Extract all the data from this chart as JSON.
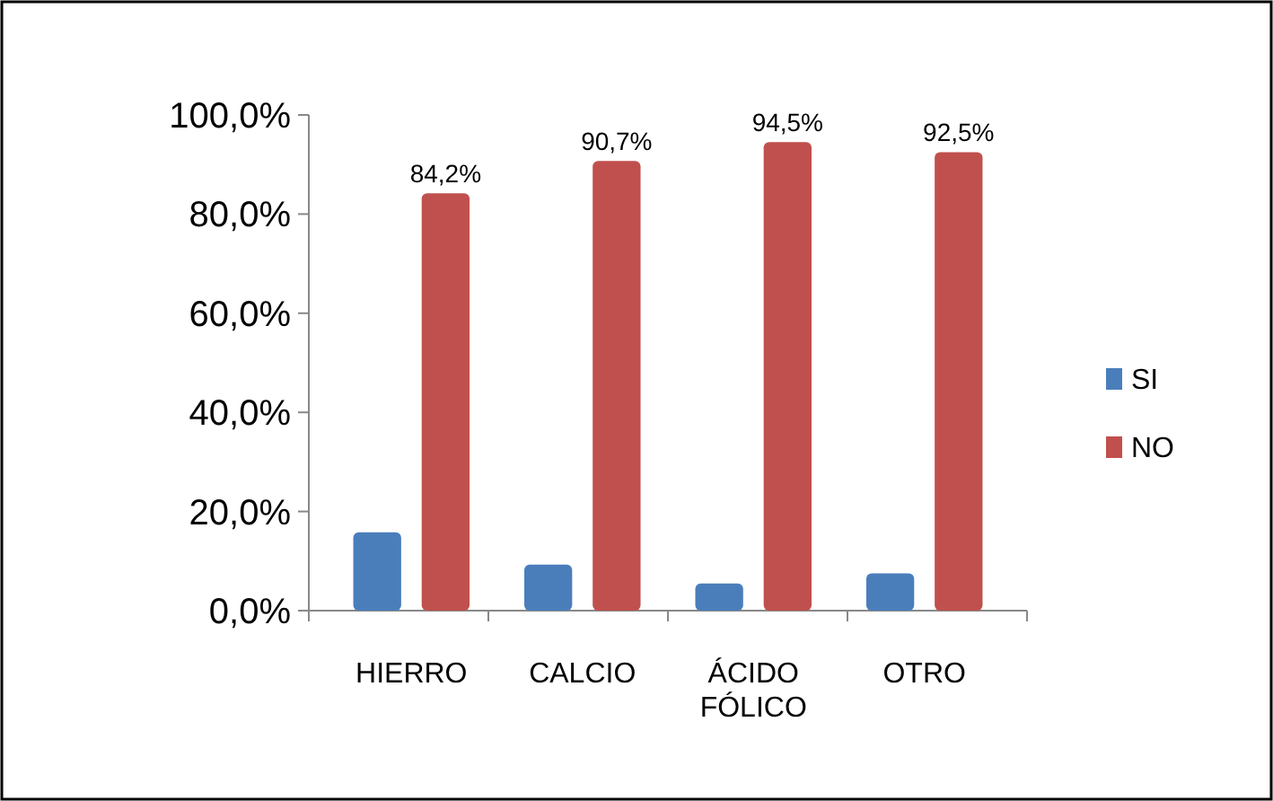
{
  "chart_data": {
    "type": "bar",
    "categories": [
      "HIERRO",
      "CALCIO",
      "ÁCIDO FÓLICO",
      "OTRO"
    ],
    "series": [
      {
        "name": "SI",
        "color": "#4a7ebb",
        "values": [
          15.8,
          9.3,
          5.5,
          7.5
        ]
      },
      {
        "name": "NO",
        "color": "#c0504d",
        "values": [
          84.2,
          90.7,
          94.5,
          92.5
        ],
        "value_labels": [
          "84,2%",
          "90,7%",
          "94,5%",
          "92,5%"
        ]
      }
    ],
    "ylim": [
      0,
      100
    ],
    "yticks": [
      {
        "value": 0,
        "label": "0,0%"
      },
      {
        "value": 20,
        "label": "20,0%"
      },
      {
        "value": 40,
        "label": "40,0%"
      },
      {
        "value": 60,
        "label": "60,0%"
      },
      {
        "value": 80,
        "label": "80,0%"
      },
      {
        "value": 100,
        "label": "100,0%"
      }
    ],
    "legend": "right",
    "grid": false
  }
}
